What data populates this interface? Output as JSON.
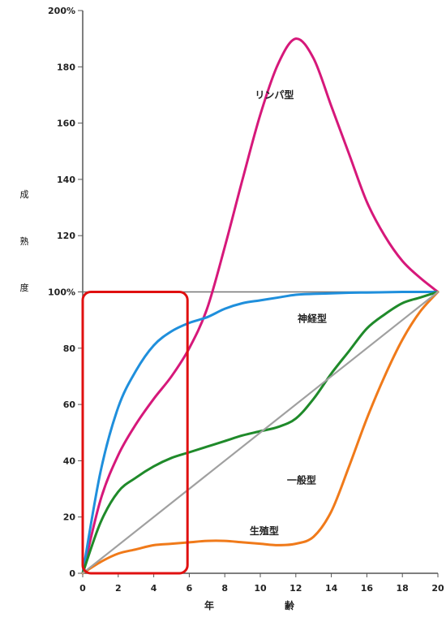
{
  "chart_data": {
    "type": "line",
    "title": "",
    "xlabel": [
      "年",
      "齢"
    ],
    "ylabel": [
      "成",
      "熟",
      "度"
    ],
    "xlim": [
      0,
      20
    ],
    "ylim": [
      0,
      200
    ],
    "x_ticks": [
      "0",
      "2",
      "4",
      "6",
      "8",
      "10",
      "12",
      "14",
      "16",
      "18",
      "20"
    ],
    "y_ticks": [
      {
        "value": 0,
        "label": "0"
      },
      {
        "value": 20,
        "label": "20"
      },
      {
        "value": 40,
        "label": "40"
      },
      {
        "value": 60,
        "label": "60"
      },
      {
        "value": 80,
        "label": "80"
      },
      {
        "value": 100,
        "label": "100%"
      },
      {
        "value": 120,
        "label": "120"
      },
      {
        "value": 140,
        "label": "140"
      },
      {
        "value": 160,
        "label": "160"
      },
      {
        "value": 180,
        "label": "180"
      },
      {
        "value": 200,
        "label": "200%"
      }
    ],
    "grid": false,
    "reference_line": {
      "y": 100
    },
    "series": [
      {
        "name": "リンパ型",
        "color": "#d6187a",
        "x": [
          0,
          1,
          2,
          3,
          4,
          5,
          6,
          7,
          8,
          9,
          10,
          11,
          12,
          13,
          14,
          15,
          16,
          17,
          18,
          19,
          20
        ],
        "values": [
          0,
          26,
          42,
          53,
          62,
          70,
          80,
          94,
          116,
          140,
          163,
          181,
          190,
          183,
          166,
          149,
          132,
          120,
          111,
          105,
          100
        ]
      },
      {
        "name": "神経型",
        "color": "#1f8fdc",
        "x": [
          0,
          1,
          2,
          3,
          4,
          5,
          6,
          7,
          8,
          9,
          10,
          11,
          12,
          13,
          14,
          15,
          16,
          17,
          18,
          19,
          20
        ],
        "values": [
          0,
          36,
          59,
          72,
          81,
          86,
          89,
          91,
          94,
          96,
          97,
          98,
          99,
          99.3,
          99.5,
          99.7,
          99.8,
          99.9,
          100,
          100,
          100
        ]
      },
      {
        "name": "一般型",
        "color": "#1f8a2a",
        "x": [
          0,
          1,
          2,
          3,
          4,
          5,
          6,
          7,
          8,
          9,
          10,
          11,
          12,
          13,
          14,
          15,
          16,
          17,
          18,
          19,
          20
        ],
        "values": [
          0,
          18,
          29,
          34,
          38,
          41,
          43,
          45,
          47,
          49,
          50.5,
          52,
          55,
          62,
          71,
          79,
          87,
          92,
          96,
          98,
          100
        ]
      },
      {
        "name": "生殖型",
        "color": "#f07a1a",
        "x": [
          0,
          1,
          2,
          3,
          4,
          5,
          6,
          7,
          8,
          9,
          10,
          11,
          12,
          13,
          14,
          15,
          16,
          17,
          18,
          19,
          20
        ],
        "values": [
          0,
          4,
          7,
          8.5,
          10,
          10.5,
          11,
          11.5,
          11.5,
          11,
          10.5,
          10,
          10.5,
          13,
          22,
          38,
          55,
          70,
          83,
          93,
          100
        ]
      },
      {
        "color": "#a0a0a0",
        "x": [
          0,
          20
        ],
        "values": [
          0,
          100
        ]
      }
    ],
    "series_labels": [
      {
        "text": "リンパ型",
        "x": 9.7,
        "y": 170
      },
      {
        "text": "神経型",
        "x": 12.1,
        "y": 90.5
      },
      {
        "text": "一般型",
        "x": 11.5,
        "y": 33
      },
      {
        "text": "生殖型",
        "x": 9.4,
        "y": 15
      }
    ],
    "highlight_box": {
      "x": [
        0,
        5.9
      ],
      "y": [
        0,
        100
      ],
      "color": "#e01010"
    }
  }
}
